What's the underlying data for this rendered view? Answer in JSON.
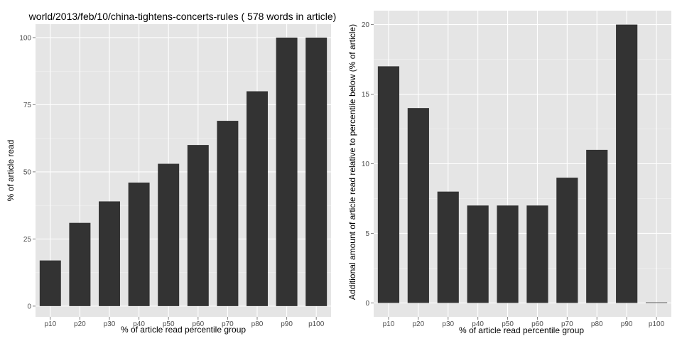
{
  "colors": {
    "panel_background": "#e5e5e5",
    "grid_major": "#ffffff",
    "grid_minor": "#f2f2f2",
    "bar_fill": "#333333",
    "tick_text": "#4d4d4d"
  },
  "chart_data": [
    {
      "type": "bar",
      "title": "world/2013/feb/10/china-tightens-concerts-rules ( 578 words in article)",
      "xlabel": "% of article read percentile group",
      "ylabel": "% of article read",
      "categories": [
        "p10",
        "p20",
        "p30",
        "p40",
        "p50",
        "p60",
        "p70",
        "p80",
        "p90",
        "p100"
      ],
      "values": [
        17,
        31,
        39,
        46,
        53,
        60,
        69,
        80,
        100,
        100
      ],
      "ylim": [
        -4,
        105
      ],
      "yticks": [
        0,
        25,
        50,
        75,
        100
      ],
      "grid": true,
      "legend": "none"
    },
    {
      "type": "bar",
      "title": "",
      "xlabel": "% of article read percentile group",
      "ylabel": "Additional amount of article read relative to percentile below (% of article)",
      "categories": [
        "p10",
        "p20",
        "p30",
        "p40",
        "p50",
        "p60",
        "p70",
        "p80",
        "p90",
        "p100"
      ],
      "values": [
        17,
        14,
        8,
        7,
        7,
        7,
        9,
        11,
        20,
        0
      ],
      "ylim": [
        -1,
        21
      ],
      "yticks": [
        0,
        5,
        10,
        15,
        20
      ],
      "grid": true,
      "legend": "none"
    }
  ]
}
